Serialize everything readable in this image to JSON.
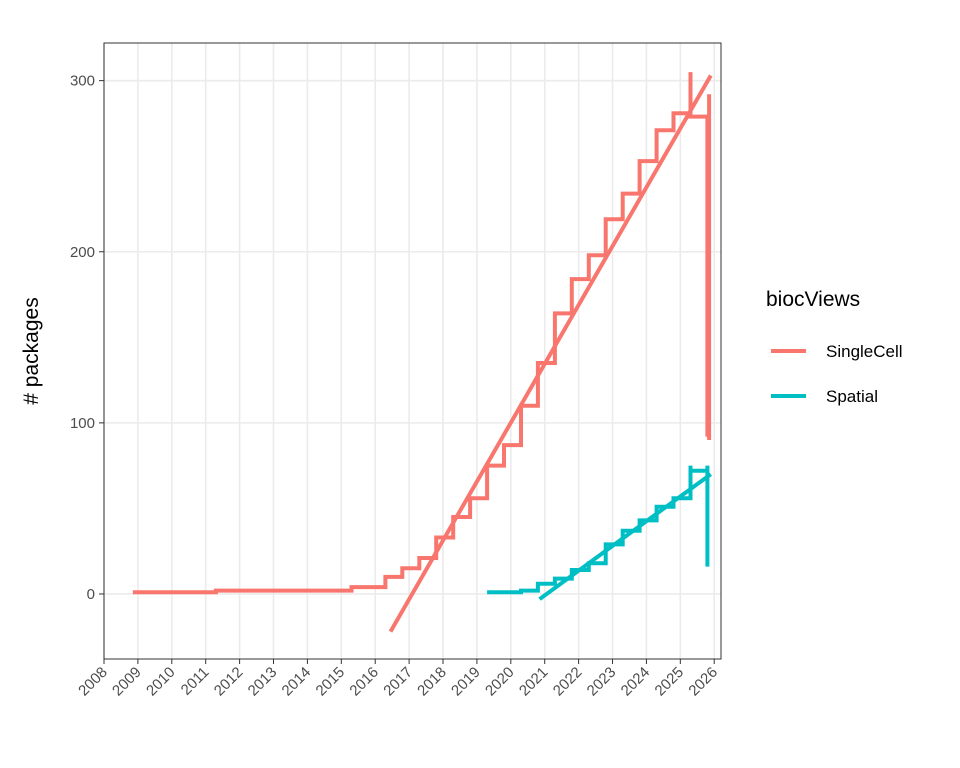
{
  "chart_data": {
    "type": "line",
    "title": "",
    "xlabel": "",
    "ylabel": "# packages",
    "xlim": [
      2008,
      2026.2
    ],
    "ylim": [
      -38,
      322
    ],
    "x_ticks": [
      2008,
      2009,
      2010,
      2011,
      2012,
      2013,
      2014,
      2015,
      2016,
      2017,
      2018,
      2019,
      2020,
      2021,
      2022,
      2023,
      2024,
      2025,
      2026
    ],
    "x_tick_labels": [
      "2008",
      "2009",
      "2010",
      "2011",
      "2012",
      "2013",
      "2014",
      "2015",
      "2016",
      "2017",
      "2018",
      "2019",
      "2020",
      "2021",
      "2022",
      "2023",
      "2024",
      "2025",
      "2026"
    ],
    "y_ticks": [
      0,
      100,
      200,
      300
    ],
    "y_tick_labels": [
      "0",
      "100",
      "200",
      "300"
    ],
    "grid": true,
    "legend": {
      "title": "biocViews",
      "position": "right"
    },
    "series": [
      {
        "name": "SingleCell",
        "color": "#F8766D",
        "style": "step",
        "points": [
          [
            2008.85,
            1
          ],
          [
            2011.3,
            1
          ],
          [
            2011.3,
            2
          ],
          [
            2015.3,
            2
          ],
          [
            2015.3,
            4
          ],
          [
            2016.3,
            4
          ],
          [
            2016.3,
            10
          ],
          [
            2016.8,
            10
          ],
          [
            2016.8,
            15
          ],
          [
            2017.3,
            15
          ],
          [
            2017.3,
            21
          ],
          [
            2017.8,
            21
          ],
          [
            2017.8,
            33
          ],
          [
            2018.3,
            33
          ],
          [
            2018.3,
            45
          ],
          [
            2018.8,
            45
          ],
          [
            2018.8,
            56
          ],
          [
            2019.3,
            56
          ],
          [
            2019.3,
            75
          ],
          [
            2019.8,
            75
          ],
          [
            2019.8,
            87
          ],
          [
            2020.3,
            87
          ],
          [
            2020.3,
            110
          ],
          [
            2020.8,
            110
          ],
          [
            2020.8,
            135
          ],
          [
            2021.3,
            135
          ],
          [
            2021.3,
            164
          ],
          [
            2021.8,
            164
          ],
          [
            2021.8,
            184
          ],
          [
            2022.3,
            184
          ],
          [
            2022.3,
            198
          ],
          [
            2022.8,
            198
          ],
          [
            2022.8,
            219
          ],
          [
            2023.3,
            219
          ],
          [
            2023.3,
            234
          ],
          [
            2023.8,
            234
          ],
          [
            2023.8,
            253
          ],
          [
            2024.3,
            253
          ],
          [
            2024.3,
            271
          ],
          [
            2024.8,
            271
          ],
          [
            2024.8,
            281
          ],
          [
            2025.3,
            281
          ],
          [
            2025.3,
            305
          ],
          [
            2025.3,
            279
          ],
          [
            2025.8,
            279
          ],
          [
            2025.8,
            92
          ]
        ]
      },
      {
        "name": "Spatial",
        "color": "#00BFC4",
        "style": "step",
        "points": [
          [
            2019.3,
            1
          ],
          [
            2020.3,
            1
          ],
          [
            2020.3,
            2
          ],
          [
            2020.8,
            2
          ],
          [
            2020.8,
            6
          ],
          [
            2021.3,
            6
          ],
          [
            2021.3,
            9
          ],
          [
            2021.8,
            9
          ],
          [
            2021.8,
            14
          ],
          [
            2022.3,
            14
          ],
          [
            2022.3,
            18
          ],
          [
            2022.8,
            18
          ],
          [
            2022.8,
            29
          ],
          [
            2023.3,
            29
          ],
          [
            2023.3,
            37
          ],
          [
            2023.8,
            37
          ],
          [
            2023.8,
            43
          ],
          [
            2024.3,
            43
          ],
          [
            2024.3,
            51
          ],
          [
            2024.8,
            51
          ],
          [
            2024.8,
            56
          ],
          [
            2025.3,
            56
          ],
          [
            2025.3,
            75
          ],
          [
            2025.3,
            72
          ],
          [
            2025.8,
            72
          ],
          [
            2025.8,
            75
          ],
          [
            2025.8,
            16
          ]
        ]
      },
      {
        "name": "SingleCell trend",
        "color": "#F8766D",
        "style": "line",
        "points": [
          [
            2016.45,
            -22
          ],
          [
            2025.9,
            303
          ]
        ]
      },
      {
        "name": "Spatial trend",
        "color": "#00BFC4",
        "style": "line",
        "points": [
          [
            2020.85,
            -3
          ],
          [
            2025.9,
            70
          ]
        ]
      },
      {
        "name": "SingleCell end segment",
        "color": "#F8766D",
        "style": "line",
        "points": [
          [
            2025.85,
            292
          ],
          [
            2025.85,
            90
          ]
        ]
      }
    ],
    "legend_entries": [
      {
        "label": "SingleCell",
        "color": "#F8766D"
      },
      {
        "label": "Spatial",
        "color": "#00BFC4"
      }
    ]
  }
}
